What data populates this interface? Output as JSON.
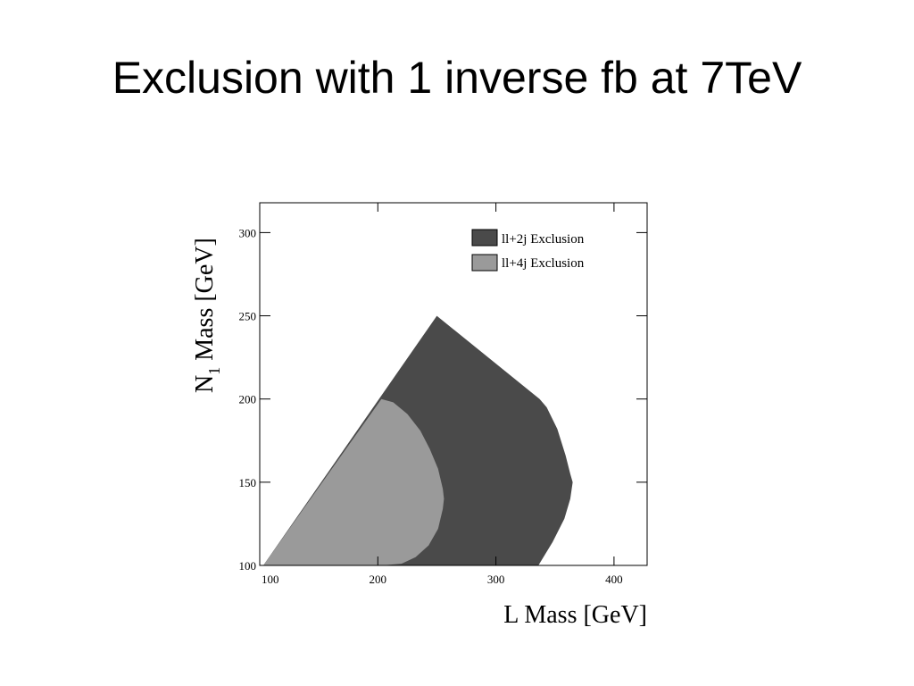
{
  "slide": {
    "title": "Exclusion with 1 inverse fb at 7TeV"
  },
  "chart_data": {
    "type": "area",
    "xlabel": "L Mass [GeV]",
    "ylabel_main": "N",
    "ylabel_sub": "1",
    "ylabel_rest": " Mass [GeV]",
    "xlim": [
      100,
      425
    ],
    "ylim": [
      100,
      320
    ],
    "x_ticks": [
      100,
      200,
      300,
      400
    ],
    "y_ticks": [
      100,
      150,
      200,
      250,
      300
    ],
    "x_tick_labels": [
      "100",
      "200",
      "300",
      "400"
    ],
    "y_tick_labels": [
      "100",
      "150",
      "200",
      "250",
      "300"
    ],
    "grid": false,
    "legend_position": "top-right",
    "series": [
      {
        "name": "ll+2j Exclusion",
        "color": "#4a4a4a",
        "x": [
          103,
          250,
          337,
          343,
          352,
          359,
          363,
          365,
          363,
          358,
          348,
          336,
          103
        ],
        "y": [
          100,
          250,
          200,
          195,
          182,
          166,
          155,
          150,
          140,
          128,
          114,
          100,
          100
        ]
      },
      {
        "name": "ll+4j Exclusion",
        "color": "#9a9a9a",
        "x": [
          103,
          203,
          213,
          225,
          236,
          244,
          251,
          255,
          256,
          255,
          251,
          243,
          232,
          220,
          203,
          103
        ],
        "y": [
          100,
          200,
          198,
          191,
          181,
          170,
          158,
          146,
          140,
          134,
          122,
          112,
          105,
          101,
          100,
          100
        ]
      }
    ]
  }
}
